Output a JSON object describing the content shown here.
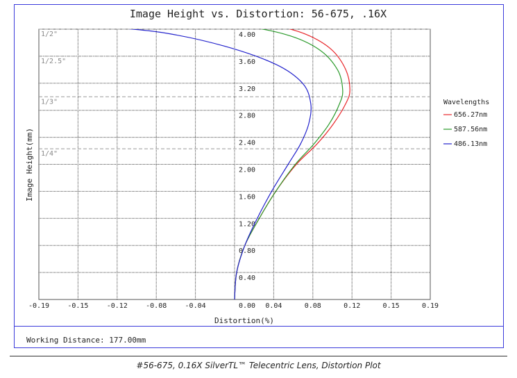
{
  "chart_data": {
    "type": "line",
    "title": "Image Height vs. Distortion: 56-675, .16X",
    "xlabel": "Distortion(%)",
    "ylabel": "Image Height(mm)",
    "xlim": [
      -0.19,
      0.19
    ],
    "ylim": [
      0.0,
      4.0
    ],
    "x_ticks": [
      "-0.19",
      "-0.15",
      "-0.12",
      "-0.08",
      "-0.04",
      "0.00",
      "0.04",
      "0.08",
      "0.12",
      "0.15",
      "0.19"
    ],
    "y_ticks": [
      "0.40",
      "0.80",
      "1.20",
      "1.60",
      "2.00",
      "2.40",
      "2.80",
      "3.20",
      "3.60",
      "4.00"
    ],
    "y_tick_values": [
      0.4,
      0.8,
      1.2,
      1.6,
      2.0,
      2.4,
      2.8,
      3.2,
      3.6,
      4.0
    ],
    "grid": true,
    "legend_title": "Wavelengths",
    "legend_position": "right",
    "reference_lines": [
      {
        "label": "1/2\"",
        "y": 4.0
      },
      {
        "label": "1/2.5\"",
        "y": 3.6
      },
      {
        "label": "1/3\"",
        "y": 3.0
      },
      {
        "label": "1/4\"",
        "y": 2.23
      }
    ],
    "series": [
      {
        "name": "656.27nm",
        "color": "#e8262a",
        "points": [
          [
            0.0,
            0.0
          ],
          [
            0.002,
            0.4
          ],
          [
            0.01,
            0.8
          ],
          [
            0.024,
            1.2
          ],
          [
            0.04,
            1.6
          ],
          [
            0.06,
            2.0
          ],
          [
            0.08,
            2.3
          ],
          [
            0.096,
            2.6
          ],
          [
            0.108,
            2.9
          ],
          [
            0.112,
            3.1
          ],
          [
            0.108,
            3.4
          ],
          [
            0.094,
            3.7
          ],
          [
            0.07,
            3.92
          ],
          [
            0.04,
            4.05
          ],
          [
            0.01,
            4.1
          ]
        ]
      },
      {
        "name": "587.56nm",
        "color": "#2a9a2a",
        "points": [
          [
            0.0,
            0.0
          ],
          [
            0.002,
            0.4
          ],
          [
            0.01,
            0.8
          ],
          [
            0.024,
            1.2
          ],
          [
            0.04,
            1.6
          ],
          [
            0.059,
            2.0
          ],
          [
            0.077,
            2.3
          ],
          [
            0.092,
            2.6
          ],
          [
            0.102,
            2.9
          ],
          [
            0.105,
            3.1
          ],
          [
            0.1,
            3.4
          ],
          [
            0.082,
            3.7
          ],
          [
            0.05,
            3.92
          ],
          [
            0.0,
            4.06
          ],
          [
            -0.06,
            4.1
          ]
        ]
      },
      {
        "name": "486.13nm",
        "color": "#2222cc",
        "points": [
          [
            0.0,
            0.0
          ],
          [
            0.002,
            0.4
          ],
          [
            0.01,
            0.8
          ],
          [
            0.022,
            1.2
          ],
          [
            0.036,
            1.6
          ],
          [
            0.052,
            2.0
          ],
          [
            0.064,
            2.3
          ],
          [
            0.072,
            2.6
          ],
          [
            0.074,
            2.9
          ],
          [
            0.066,
            3.2
          ],
          [
            0.04,
            3.48
          ],
          [
            -0.01,
            3.75
          ],
          [
            -0.07,
            3.95
          ],
          [
            -0.13,
            4.04
          ],
          [
            -0.175,
            4.1
          ]
        ]
      }
    ]
  },
  "footer": {
    "working_distance": "Working Distance: 177.00mm"
  },
  "caption": "#56-675, 0.16X SilverTL™ Telecentric Lens, Distortion Plot"
}
